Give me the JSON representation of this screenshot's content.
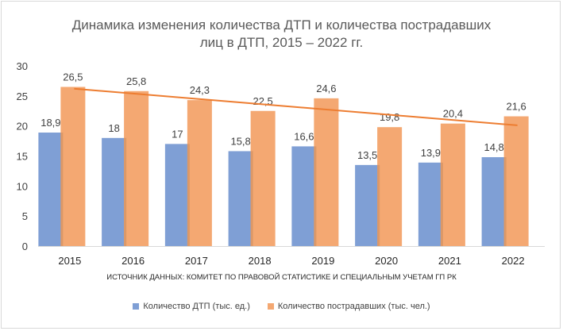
{
  "chart_data": {
    "type": "bar",
    "title": "Динамика изменения количества ДТП и количества пострадавших\nлиц в ДТП, 2015 – 2022 гг.",
    "categories": [
      "2015",
      "2016",
      "2017",
      "2018",
      "2019",
      "2020",
      "2021",
      "2022"
    ],
    "series": [
      {
        "name": "Количество ДТП (тыс. ед.)",
        "values": [
          18.9,
          18,
          17,
          15.8,
          16.6,
          13.5,
          13.9,
          14.8
        ],
        "labels": [
          "18,9",
          "18",
          "17",
          "15,8",
          "16,6",
          "13,5",
          "13,9",
          "14,8"
        ],
        "color": "#7f9fd5"
      },
      {
        "name": "Количество пострадавших (тыс. чел.)",
        "values": [
          26.5,
          25.8,
          24.3,
          22.5,
          24.6,
          19.8,
          20.4,
          21.6
        ],
        "labels": [
          "26,5",
          "25,8",
          "24,3",
          "22,5",
          "24,6",
          "19,8",
          "20,4",
          "21,6"
        ],
        "color": "#f4a872"
      }
    ],
    "trendline": {
      "series": "Количество пострадавших (тыс. чел.)",
      "color": "#ed7d31",
      "start": 26.2,
      "end": 20.1
    },
    "ylim": [
      0,
      30
    ],
    "yticks": [
      0,
      5,
      10,
      15,
      20,
      25,
      30
    ],
    "grid": false,
    "legend_position": "bottom",
    "note": "ИСТОЧНИК ДАННЫХ: КОМИТЕТ ПО ПРАВОВОЙ СТАТИСТИКЕ И СПЕЦИАЛЬНЫМ УЧЕТАМ ГП РК"
  }
}
